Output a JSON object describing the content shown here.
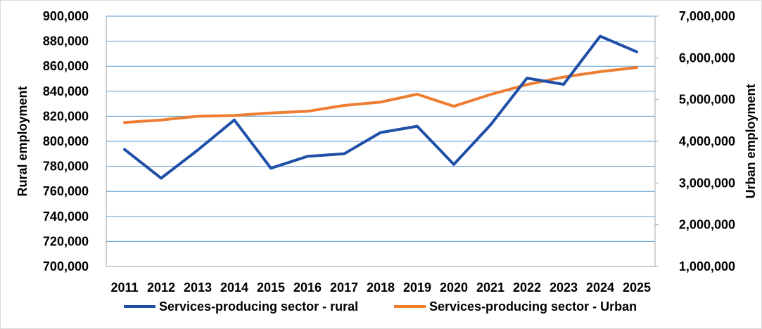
{
  "chart_data": {
    "type": "line",
    "x": [
      "2011",
      "2012",
      "2013",
      "2014",
      "2015",
      "2016",
      "2017",
      "2018",
      "2019",
      "2020",
      "2021",
      "2022",
      "2023",
      "2024",
      "2025"
    ],
    "series": [
      {
        "name": "Services-producing sector - rural",
        "axis": "left",
        "color": "#1f4fa6",
        "values": [
          793500,
          770500,
          793000,
          817000,
          778500,
          788000,
          790000,
          807000,
          812000,
          781500,
          813000,
          850500,
          845500,
          884000,
          871500
        ]
      },
      {
        "name": "Services-producing sector - Urban",
        "axis": "right",
        "color": "#ed7d31",
        "values": [
          4450000,
          4510000,
          4600000,
          4620000,
          4680000,
          4720000,
          4860000,
          4940000,
          5130000,
          4840000,
          5120000,
          5360000,
          5540000,
          5670000,
          5770000
        ]
      }
    ],
    "y_left": {
      "label": "Rural employment",
      "range": [
        700000,
        900000
      ],
      "ticks": [
        "700,000",
        "720,000",
        "740,000",
        "760,000",
        "780,000",
        "800,000",
        "820,000",
        "840,000",
        "860,000",
        "880,000",
        "900,000"
      ]
    },
    "y_right": {
      "label": "Urban employment",
      "range": [
        1000000,
        7000000
      ],
      "ticks": [
        "1,000,000",
        "2,000,000",
        "3,000,000",
        "4,000,000",
        "5,000,000",
        "6,000,000",
        "7,000,000"
      ]
    },
    "grid": true,
    "grid_color": "#5b9bd5",
    "legend_position": "bottom"
  }
}
